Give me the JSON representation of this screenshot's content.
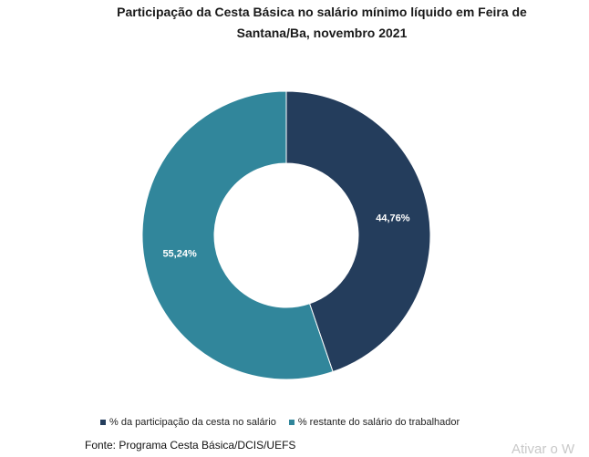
{
  "title_line1": "Participação da Cesta Básica no salário mínimo líquido em Feira de",
  "title_line2": "Santana/Ba, novembro 2021",
  "source": "Fonte: Programa Cesta Básica/DCIS/UEFS",
  "watermark": "Ativar o W",
  "chart_data": {
    "type": "pie",
    "variant": "donut",
    "title": "Participação da Cesta Básica no salário mínimo líquido em Feira de Santana/Ba, novembro 2021",
    "legend_position": "bottom",
    "slices": [
      {
        "label": "% da participação da cesta no salário",
        "value": 44.76,
        "display": "44,76%",
        "color": "#243d5c"
      },
      {
        "label": "% restante do salário do trabalhador",
        "value": 55.24,
        "display": "55,24%",
        "color": "#31869b"
      }
    ]
  }
}
